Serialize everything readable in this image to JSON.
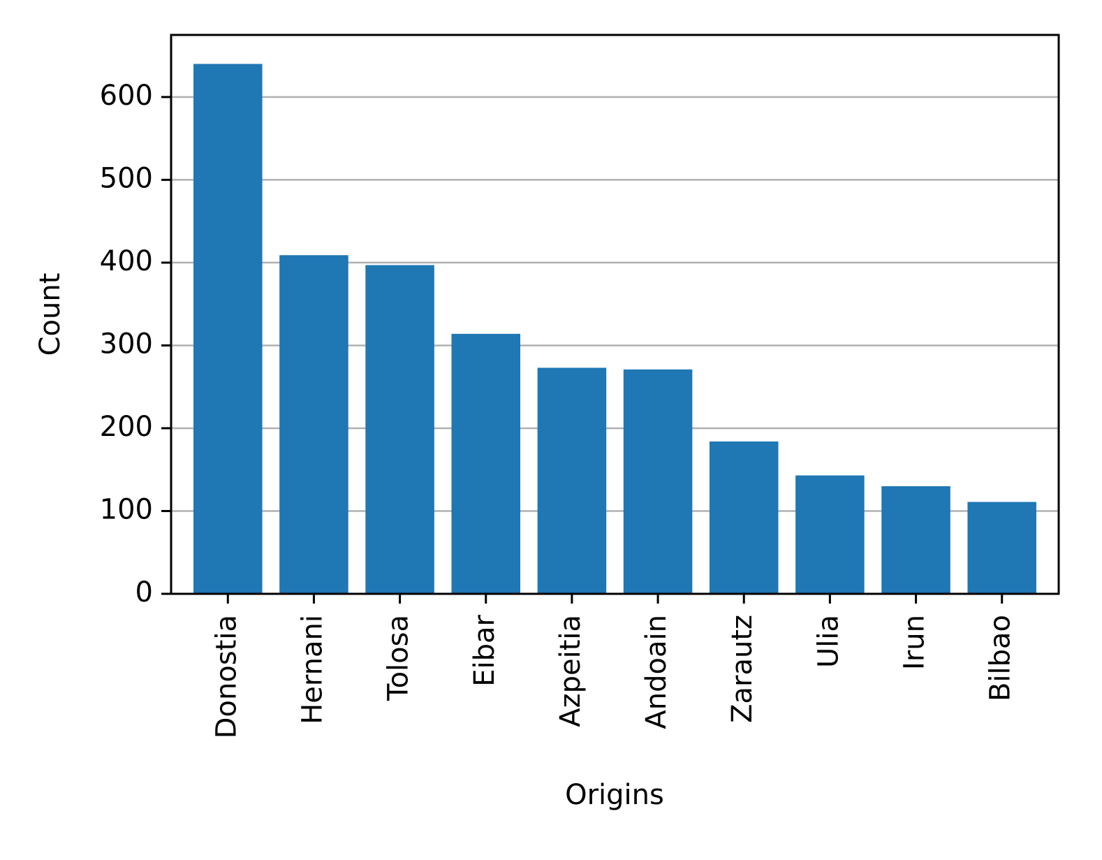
{
  "chart_data": {
    "type": "bar",
    "x_label": "Origins",
    "y_label": "Count",
    "categories": [
      "Donostia",
      "Hernani",
      "Tolosa",
      "Eibar",
      "Azpeitia",
      "Andoain",
      "Zarautz",
      "Ulia",
      "Irun",
      "Bilbao"
    ],
    "values": [
      640,
      409,
      397,
      314,
      273,
      271,
      184,
      143,
      130,
      111
    ],
    "color": "#1f77b4",
    "ylim": [
      0,
      675
    ],
    "yticks": [
      0,
      100,
      200,
      300,
      400,
      500,
      600
    ],
    "grid": true
  }
}
